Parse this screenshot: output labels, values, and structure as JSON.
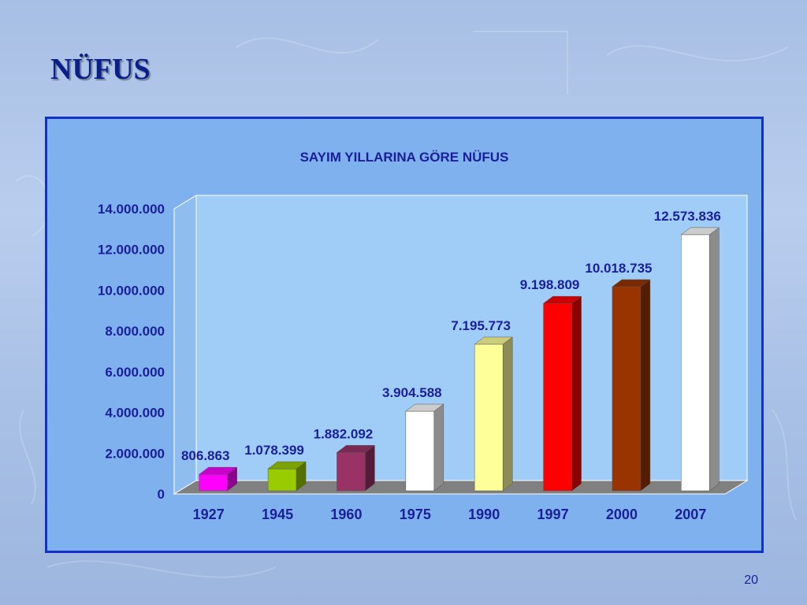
{
  "slide": {
    "title": "NÜFUS",
    "page_number": "20"
  },
  "chart_data": {
    "type": "bar",
    "title": "SAYIM YILLARINA GÖRE NÜFUS",
    "xlabel": "",
    "ylabel": "",
    "categories": [
      "1927",
      "1945",
      "1960",
      "1975",
      "1990",
      "1997",
      "2000",
      "2007"
    ],
    "values": [
      806863,
      1078399,
      1882092,
      3904588,
      7195773,
      9198809,
      10018735,
      12573836
    ],
    "data_labels": [
      "806.863",
      "1.078.399",
      "1.882.092",
      "3.904.588",
      "7.195.773",
      "9.198.809",
      "10.018.735",
      "12.573.836"
    ],
    "bar_colors": [
      "#ff00ff",
      "#99cc00",
      "#993366",
      "#ffffff",
      "#ffff99",
      "#ff0000",
      "#993300",
      "#ffffff"
    ],
    "ylim": [
      0,
      14000000
    ],
    "ytick_values": [
      0,
      2000000,
      4000000,
      6000000,
      8000000,
      10000000,
      12000000,
      14000000
    ],
    "ytick_labels": [
      "0",
      "2.000.000",
      "4.000.000",
      "6.000.000",
      "8.000.000",
      "10.000.000",
      "12.000.000",
      "14.000.000"
    ],
    "grid": false,
    "style": "3d-column",
    "colors": {
      "label_text": "#1a1f99",
      "title_text": "#1a1f99",
      "floor": "#808080",
      "plot_wall": "#a0cdf8"
    }
  }
}
